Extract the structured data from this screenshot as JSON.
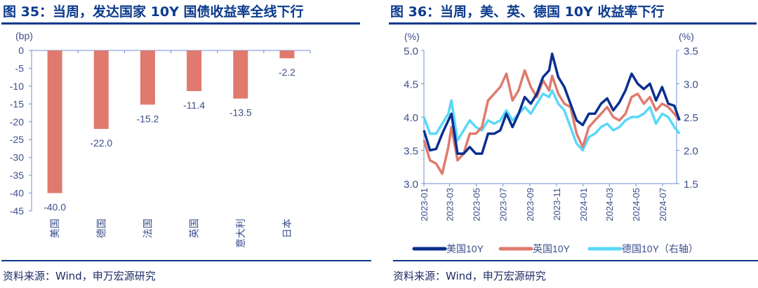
{
  "left": {
    "title": "图 35：当周，发达国家 10Y 国债收益率全线下行",
    "source": "资料来源：Wind，申万宏源研究"
  },
  "right": {
    "title": "图 36：当周，美、英、德国 10Y 收益率下行",
    "source": "资料来源：Wind，申万宏源研究"
  },
  "chart_data": [
    {
      "type": "bar",
      "unit": "(bp)",
      "categories": [
        "美国",
        "德国",
        "法国",
        "英国",
        "意大利",
        "日本"
      ],
      "values": [
        -40.0,
        -22.0,
        -15.2,
        -11.4,
        -13.5,
        -2.2
      ],
      "data_labels": [
        "-40.0",
        "-22.0",
        "-15.2",
        "-11.4",
        "-13.5",
        "-2.2"
      ],
      "ylim": [
        -45,
        0
      ],
      "yticks": [
        0,
        -5,
        -10,
        -15,
        -20,
        -25,
        -30,
        -35,
        -40,
        -45
      ],
      "color": "#e07a6e",
      "grid": false
    },
    {
      "type": "line",
      "left_unit": "(%)",
      "right_unit": "(%)",
      "ylim": [
        3.0,
        5.0
      ],
      "yticks": [
        "3.0",
        "3.5",
        "4.0",
        "4.5",
        "5.0"
      ],
      "y2lim": [
        1.5,
        3.5
      ],
      "y2ticks": [
        "1.5",
        "2.0",
        "2.5",
        "3.0",
        "3.5"
      ],
      "xticks": [
        "2023-01",
        "2023-03",
        "2023-05",
        "2023-07",
        "2023-09",
        "2023-11",
        "2024-01",
        "2024-03",
        "2024-05",
        "2024-07"
      ],
      "legend": "bottom",
      "grid": false,
      "x": [
        "2023-01-01",
        "2023-01-15",
        "2023-01-29",
        "2023-02-12",
        "2023-02-26",
        "2023-03-05",
        "2023-03-19",
        "2023-04-02",
        "2023-04-16",
        "2023-04-30",
        "2023-05-14",
        "2023-05-28",
        "2023-06-11",
        "2023-06-25",
        "2023-07-09",
        "2023-07-23",
        "2023-08-06",
        "2023-08-20",
        "2023-09-03",
        "2023-09-17",
        "2023-10-01",
        "2023-10-15",
        "2023-10-22",
        "2023-11-05",
        "2023-11-19",
        "2023-12-03",
        "2023-12-17",
        "2023-12-31",
        "2024-01-14",
        "2024-01-28",
        "2024-02-11",
        "2024-02-25",
        "2024-03-10",
        "2024-03-24",
        "2024-04-07",
        "2024-04-21",
        "2024-05-05",
        "2024-05-19",
        "2024-06-02",
        "2024-06-16",
        "2024-06-30",
        "2024-07-14",
        "2024-07-28",
        "2024-08-09"
      ],
      "series": [
        {
          "name": "美国10Y",
          "axis": "left",
          "color": "#0a2f8f",
          "values": [
            3.8,
            3.5,
            3.52,
            3.75,
            3.95,
            4.05,
            3.45,
            3.45,
            3.55,
            3.45,
            3.45,
            3.75,
            3.75,
            3.8,
            4.05,
            3.85,
            4.05,
            4.3,
            4.2,
            4.35,
            4.6,
            4.7,
            4.95,
            4.6,
            4.45,
            4.2,
            3.95,
            3.88,
            4.05,
            4.05,
            4.2,
            4.28,
            4.1,
            4.22,
            4.4,
            4.65,
            4.5,
            4.42,
            4.5,
            4.25,
            4.45,
            4.2,
            4.17,
            3.95
          ]
        },
        {
          "name": "英国10Y",
          "axis": "left",
          "color": "#e07a6e",
          "values": [
            3.65,
            3.35,
            3.3,
            3.15,
            3.55,
            3.85,
            3.35,
            3.45,
            3.75,
            3.75,
            3.85,
            4.25,
            4.35,
            4.45,
            4.65,
            4.25,
            4.4,
            4.7,
            4.45,
            4.3,
            4.55,
            4.4,
            4.62,
            4.35,
            4.2,
            4.15,
            3.75,
            3.55,
            3.85,
            3.95,
            4.05,
            4.15,
            4.0,
            3.95,
            4.05,
            4.3,
            4.35,
            4.2,
            4.3,
            4.1,
            4.2,
            4.15,
            4.05,
            3.95
          ]
        },
        {
          "name": "德国10Y（右轴）",
          "axis": "right",
          "color": "#5ad8f8",
          "values": [
            2.5,
            2.25,
            2.25,
            2.4,
            2.55,
            2.75,
            2.15,
            2.3,
            2.45,
            2.35,
            2.3,
            2.45,
            2.4,
            2.45,
            2.6,
            2.45,
            2.55,
            2.65,
            2.55,
            2.7,
            2.85,
            2.8,
            2.9,
            2.7,
            2.6,
            2.35,
            2.1,
            2.0,
            2.2,
            2.25,
            2.35,
            2.4,
            2.3,
            2.35,
            2.45,
            2.5,
            2.5,
            2.55,
            2.65,
            2.4,
            2.55,
            2.5,
            2.35,
            2.25
          ]
        }
      ]
    }
  ]
}
